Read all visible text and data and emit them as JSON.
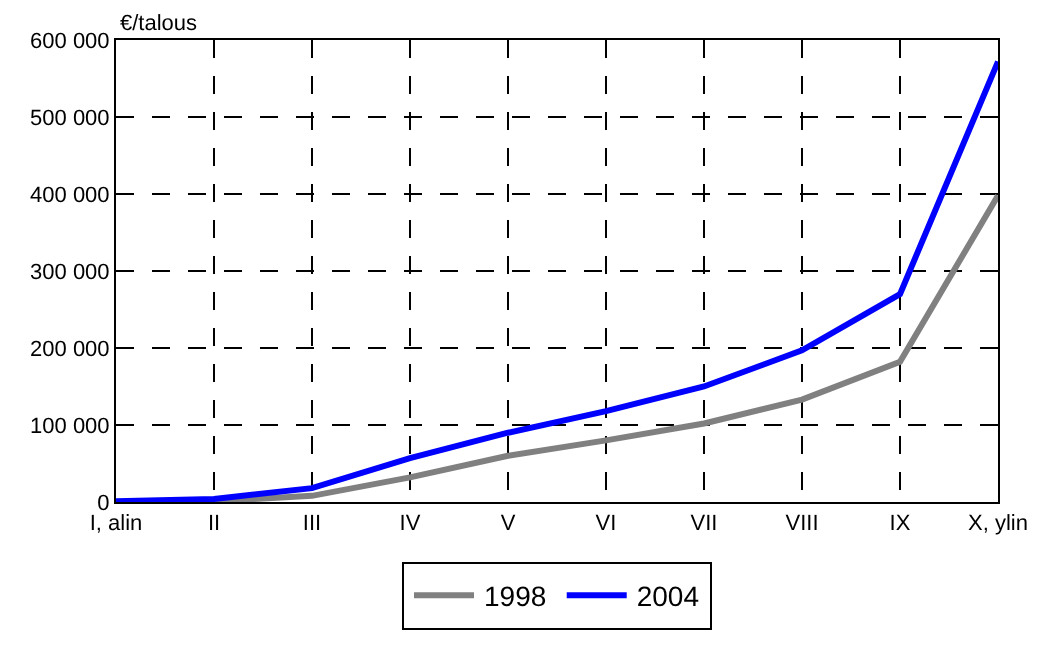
{
  "chart_data": {
    "type": "line",
    "ylabel": "€/talous",
    "categories": [
      "I, alin",
      "II",
      "III",
      "IV",
      "V",
      "VI",
      "VII",
      "VIII",
      "IX",
      "X, ylin"
    ],
    "series": [
      {
        "name": "1998",
        "color": "#808080",
        "values": [
          0,
          1000,
          8000,
          32000,
          60000,
          80000,
          102000,
          133000,
          182000,
          398000
        ]
      },
      {
        "name": "2004",
        "color": "#0000ff",
        "values": [
          1000,
          4000,
          18000,
          57000,
          90000,
          118000,
          150000,
          197000,
          270000,
          572000
        ]
      }
    ],
    "ylim": [
      0,
      600000
    ],
    "yticks": [
      {
        "value": 0,
        "label": "0"
      },
      {
        "value": 100000,
        "label": "100 000"
      },
      {
        "value": 200000,
        "label": "200 000"
      },
      {
        "value": 300000,
        "label": "300 000"
      },
      {
        "value": 400000,
        "label": "400 000"
      },
      {
        "value": 500000,
        "label": "500 000"
      },
      {
        "value": 600000,
        "label": "600 000"
      }
    ],
    "grid": true,
    "legend": "bottom",
    "marker": "none",
    "line_style": "solid"
  }
}
